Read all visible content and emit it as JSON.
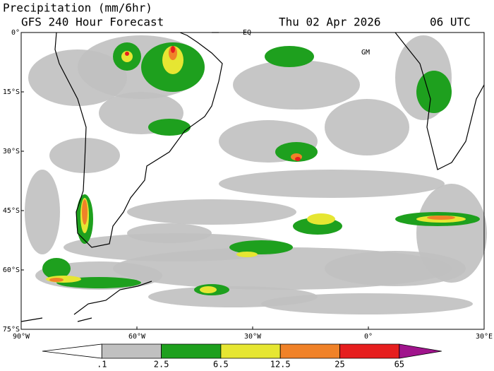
{
  "header": {
    "title": "Precipitation (mm/6hr)",
    "subtitle": "GFS 240 Hour Forecast",
    "date": "Thu 02 Apr 2026",
    "time": "06 UTC"
  },
  "map": {
    "lat_labels": [
      "0°",
      "15°S",
      "30°S",
      "45°S",
      "60°S",
      "75°S"
    ],
    "lon_labels": [
      "90°W",
      "60°W",
      "30°W",
      "0°",
      "30°E"
    ],
    "annotations": [
      "EQ",
      "GM"
    ]
  },
  "colorbar": {
    "labels": [
      ".1",
      "2.5",
      "6.5",
      "12.5",
      "25",
      "65"
    ],
    "colors": [
      "#ffffff",
      "#c0c0c0",
      "#1ea01e",
      "#e6e632",
      "#f08228",
      "#e61e1e",
      "#a0148c"
    ]
  }
}
